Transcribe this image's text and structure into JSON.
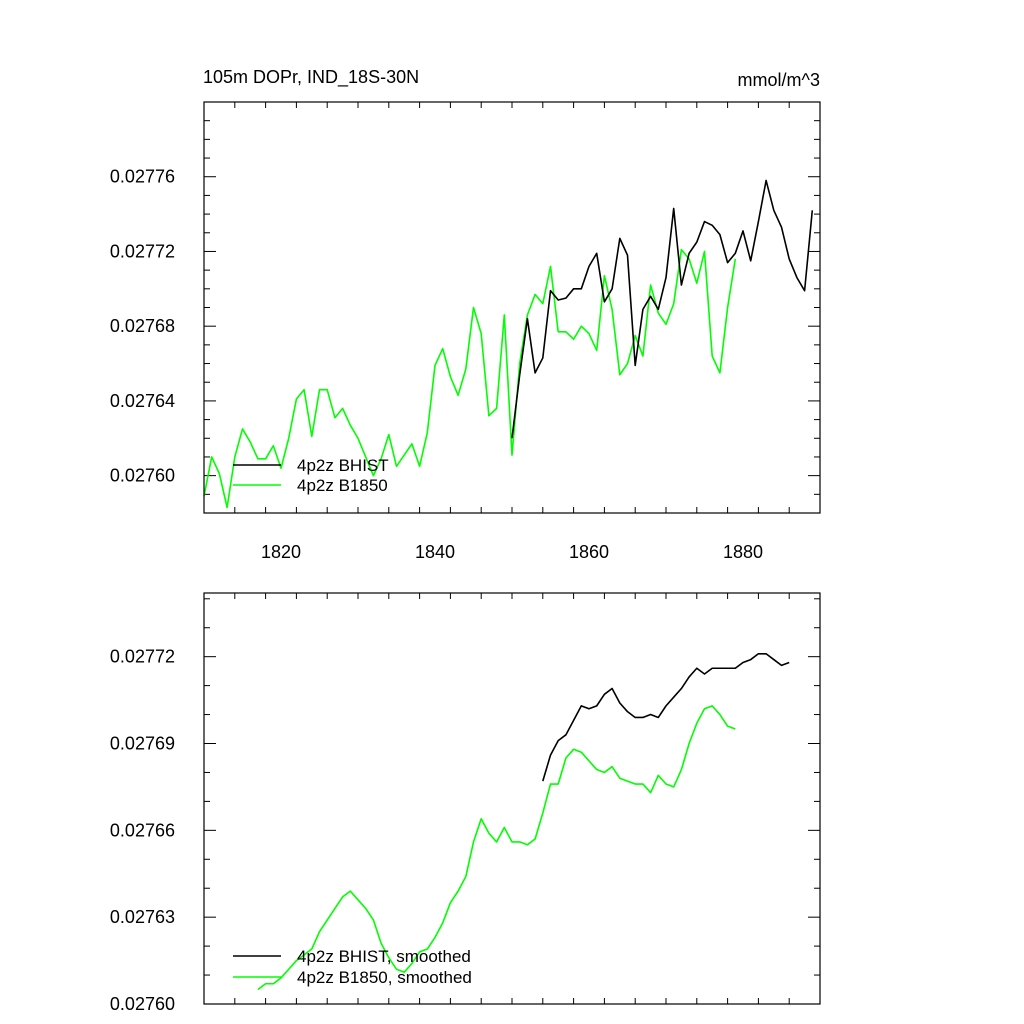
{
  "colors": {
    "BHIST": "#000000",
    "B1850": "#00ff00"
  },
  "chart_data": [
    {
      "type": "line",
      "title": "105m DOPr, IND_18S-30N",
      "units": "mmol/m^3",
      "xlabel": "",
      "ylabel": "",
      "xlim": [
        1810,
        1890
      ],
      "ylim": [
        0.02758,
        0.0278
      ],
      "xticks": [
        1820,
        1840,
        1860,
        1880
      ],
      "xtick_labels": [
        "1820",
        "1840",
        "1860",
        "1880"
      ],
      "yticks": [
        0.0276,
        0.02764,
        0.02768,
        0.02772,
        0.02776
      ],
      "ytick_labels": [
        "0.02760",
        "0.02764",
        "0.02768",
        "0.02772",
        "0.02776"
      ],
      "grid": false,
      "legend_position": "bottom-left",
      "series": [
        {
          "name": "4p2z BHIST",
          "color": "#000000",
          "x": [
            1850,
            1851,
            1852,
            1853,
            1854,
            1855,
            1856,
            1857,
            1858,
            1859,
            1860,
            1861,
            1862,
            1863,
            1864,
            1865,
            1866,
            1867,
            1868,
            1869,
            1870,
            1871,
            1872,
            1873,
            1874,
            1875,
            1876,
            1877,
            1878,
            1879,
            1880,
            1881,
            1882,
            1883,
            1884,
            1885,
            1886,
            1887,
            1888,
            1889
          ],
          "y": [
            0.02762,
            0.027654,
            0.027684,
            0.027655,
            0.027663,
            0.027699,
            0.027694,
            0.027695,
            0.0277,
            0.0277,
            0.027712,
            0.027719,
            0.027693,
            0.0277,
            0.027727,
            0.027718,
            0.027659,
            0.027689,
            0.027696,
            0.027689,
            0.027706,
            0.027743,
            0.027702,
            0.027719,
            0.027725,
            0.027736,
            0.027734,
            0.027729,
            0.027714,
            0.027719,
            0.027731,
            0.027715,
            0.027736,
            0.027758,
            0.027742,
            0.027733,
            0.027716,
            0.027706,
            0.027699,
            0.027742
          ]
        },
        {
          "name": "4p2z B1850",
          "color": "#00ff00",
          "x": [
            1810,
            1811,
            1812,
            1813,
            1814,
            1815,
            1816,
            1817,
            1818,
            1819,
            1820,
            1821,
            1822,
            1823,
            1824,
            1825,
            1826,
            1827,
            1828,
            1829,
            1830,
            1831,
            1832,
            1833,
            1834,
            1835,
            1836,
            1837,
            1838,
            1839,
            1840,
            1841,
            1842,
            1843,
            1844,
            1845,
            1846,
            1847,
            1848,
            1849,
            1850,
            1851,
            1852,
            1853,
            1854,
            1855,
            1856,
            1857,
            1858,
            1859,
            1860,
            1861,
            1862,
            1863,
            1864,
            1865,
            1866,
            1867,
            1868,
            1869,
            1870,
            1871,
            1872,
            1873,
            1874,
            1875,
            1876,
            1877,
            1878,
            1879
          ],
          "y": [
            0.027589,
            0.02761,
            0.027601,
            0.027583,
            0.02761,
            0.027625,
            0.027618,
            0.027609,
            0.027609,
            0.027616,
            0.027604,
            0.02762,
            0.027641,
            0.027646,
            0.027621,
            0.027646,
            0.027646,
            0.027631,
            0.027636,
            0.027627,
            0.02762,
            0.02761,
            0.0276,
            0.027609,
            0.027622,
            0.027605,
            0.027611,
            0.027617,
            0.027605,
            0.027623,
            0.027659,
            0.027668,
            0.027653,
            0.027643,
            0.027657,
            0.02769,
            0.027676,
            0.027632,
            0.027636,
            0.027686,
            0.027611,
            0.02766,
            0.027686,
            0.027697,
            0.027692,
            0.027712,
            0.027677,
            0.027677,
            0.027673,
            0.02768,
            0.027676,
            0.027667,
            0.027707,
            0.027689,
            0.027654,
            0.02766,
            0.027675,
            0.027664,
            0.027702,
            0.027687,
            0.027681,
            0.027692,
            0.027721,
            0.027716,
            0.027703,
            0.02772,
            0.027664,
            0.027655,
            0.02769,
            0.027716
          ]
        }
      ]
    },
    {
      "type": "line",
      "title": "",
      "xlabel": "",
      "ylabel": "",
      "xlim": [
        1810,
        1890
      ],
      "ylim": [
        0.0276,
        0.027742
      ],
      "xticks": [
        1820,
        1840,
        1860,
        1880
      ],
      "yticks": [
        0.0276,
        0.02763,
        0.02766,
        0.02769,
        0.02772
      ],
      "ytick_labels": [
        "0.02760",
        "0.02763",
        "0.02766",
        "0.02769",
        "0.02772"
      ],
      "grid": false,
      "legend_position": "bottom-left",
      "series": [
        {
          "name": "4p2z BHIST, smoothed",
          "color": "#000000",
          "x": [
            1854,
            1855,
            1856,
            1857,
            1858,
            1859,
            1860,
            1861,
            1862,
            1863,
            1864,
            1865,
            1866,
            1867,
            1868,
            1869,
            1870,
            1871,
            1872,
            1873,
            1874,
            1875,
            1876,
            1877,
            1878,
            1879,
            1880,
            1881,
            1882,
            1883,
            1884,
            1885,
            1886
          ],
          "y": [
            0.027677,
            0.027686,
            0.027691,
            0.027693,
            0.027698,
            0.027703,
            0.027702,
            0.027703,
            0.027707,
            0.027709,
            0.027704,
            0.027701,
            0.027699,
            0.027699,
            0.0277,
            0.027699,
            0.027703,
            0.027706,
            0.027709,
            0.027713,
            0.027716,
            0.027714,
            0.027716,
            0.027716,
            0.027716,
            0.027716,
            0.027718,
            0.027719,
            0.027721,
            0.027721,
            0.027719,
            0.027717,
            0.027718
          ]
        },
        {
          "name": "4p2z B1850, smoothed",
          "color": "#00ff00",
          "x": [
            1817,
            1818,
            1819,
            1820,
            1821,
            1822,
            1823,
            1824,
            1825,
            1826,
            1827,
            1828,
            1829,
            1830,
            1831,
            1832,
            1833,
            1834,
            1835,
            1836,
            1837,
            1838,
            1839,
            1840,
            1841,
            1842,
            1843,
            1844,
            1845,
            1846,
            1847,
            1848,
            1849,
            1850,
            1851,
            1852,
            1853,
            1854,
            1855,
            1856,
            1857,
            1858,
            1859,
            1860,
            1861,
            1862,
            1863,
            1864,
            1865,
            1866,
            1867,
            1868,
            1869,
            1870,
            1871,
            1872,
            1873,
            1874,
            1875,
            1876,
            1877,
            1878,
            1879
          ],
          "y": [
            0.027605,
            0.027607,
            0.027607,
            0.027609,
            0.027612,
            0.027615,
            0.027617,
            0.027619,
            0.027625,
            0.027629,
            0.027633,
            0.027637,
            0.027639,
            0.027636,
            0.027633,
            0.027629,
            0.027621,
            0.027616,
            0.027612,
            0.027611,
            0.027614,
            0.027618,
            0.027619,
            0.027623,
            0.027628,
            0.027635,
            0.027639,
            0.027644,
            0.027656,
            0.027664,
            0.027659,
            0.027656,
            0.027661,
            0.027656,
            0.027656,
            0.027655,
            0.027657,
            0.027666,
            0.027676,
            0.027676,
            0.027685,
            0.027688,
            0.027687,
            0.027684,
            0.027681,
            0.02768,
            0.027682,
            0.027678,
            0.027677,
            0.027676,
            0.027676,
            0.027673,
            0.027679,
            0.027676,
            0.027675,
            0.027681,
            0.02769,
            0.027697,
            0.027702,
            0.027703,
            0.0277,
            0.027696,
            0.027695
          ]
        }
      ]
    }
  ]
}
